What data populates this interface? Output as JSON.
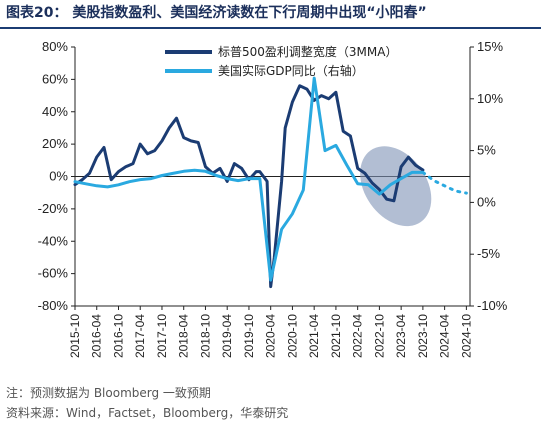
{
  "header": {
    "title": "图表20：  美股指数盈利、美国经济读数在下行周期中出现“小阳春”"
  },
  "footer": {
    "note": "注：预测数据为 Bloomberg 一致预期",
    "source": "资料来源：Wind，Factset，Bloomberg，华泰研究"
  },
  "colors": {
    "earnings_line": "#1b3c73",
    "gdp_line": "#2aa9e0",
    "ellipse": "#7f93b5"
  },
  "chart_data": {
    "type": "line",
    "title": "美股指数盈利、美国经济读数在下行周期中出现“小阳春”",
    "x_ticks": [
      "2015-10",
      "2016-04",
      "2016-10",
      "2017-04",
      "2017-10",
      "2018-04",
      "2018-10",
      "2019-04",
      "2019-10",
      "2020-04",
      "2020-10",
      "2021-04",
      "2021-10",
      "2022-04",
      "2022-10",
      "2023-04",
      "2023-10",
      "2024-04",
      "2024-10"
    ],
    "x_range": [
      "2015-10",
      "2024-11"
    ],
    "left_axis": {
      "ylim": [
        -80,
        80
      ],
      "ticks": [
        "80%",
        "60%",
        "40%",
        "20%",
        "0%",
        "-20%",
        "-40%",
        "-60%",
        "-80%"
      ]
    },
    "right_axis": {
      "ylim": [
        -10,
        15
      ],
      "ticks": [
        "15%",
        "10%",
        "5%",
        "0%",
        "-5%",
        "-10%"
      ]
    },
    "legend": {
      "placement": "top-center"
    },
    "series": [
      {
        "name": "标普500盈利调整宽度（3MMA）",
        "axis": "left",
        "color": "#1b3c73",
        "x": [
          "2015-10",
          "2015-12",
          "2016-02",
          "2016-04",
          "2016-06",
          "2016-08",
          "2016-10",
          "2016-12",
          "2017-02",
          "2017-04",
          "2017-06",
          "2017-08",
          "2017-10",
          "2017-12",
          "2018-02",
          "2018-04",
          "2018-06",
          "2018-08",
          "2018-10",
          "2018-12",
          "2019-02",
          "2019-04",
          "2019-06",
          "2019-08",
          "2019-10",
          "2019-12",
          "2020-01",
          "2020-03",
          "2020-04",
          "2020-05",
          "2020-07",
          "2020-08",
          "2020-10",
          "2020-12",
          "2021-02",
          "2021-04",
          "2021-06",
          "2021-08",
          "2021-10",
          "2021-12",
          "2022-02",
          "2022-04",
          "2022-06",
          "2022-08",
          "2022-10",
          "2022-12",
          "2023-02",
          "2023-04",
          "2023-06",
          "2023-08",
          "2023-10"
        ],
        "values": [
          -5,
          -2,
          2,
          12,
          18,
          -2,
          3,
          6,
          8,
          20,
          14,
          16,
          22,
          30,
          36,
          24,
          22,
          21,
          6,
          2,
          5,
          -3,
          8,
          5,
          -2,
          3,
          3,
          -3,
          -68,
          -50,
          -3,
          30,
          46,
          56,
          54,
          47,
          50,
          48,
          52,
          28,
          25,
          5,
          2,
          -4,
          -8,
          -14,
          -15,
          6,
          12,
          7,
          4
        ]
      },
      {
        "name": "美国实际GDP同比（右轴）",
        "axis": "right",
        "color": "#2aa9e0",
        "x": [
          "2015-10",
          "2016-01",
          "2016-04",
          "2016-07",
          "2016-10",
          "2017-01",
          "2017-04",
          "2017-07",
          "2017-10",
          "2018-01",
          "2018-04",
          "2018-07",
          "2018-10",
          "2019-01",
          "2019-04",
          "2019-07",
          "2019-10",
          "2020-01",
          "2020-04",
          "2020-07",
          "2020-10",
          "2021-01",
          "2021-04",
          "2021-07",
          "2021-10",
          "2022-01",
          "2022-04",
          "2022-07",
          "2022-10",
          "2023-01",
          "2023-04",
          "2023-07",
          "2023-10"
        ],
        "values": [
          2.0,
          1.8,
          1.6,
          1.5,
          1.7,
          2.0,
          2.2,
          2.3,
          2.6,
          2.8,
          3.0,
          3.1,
          3.0,
          2.6,
          2.3,
          2.1,
          2.3,
          2.3,
          -7.5,
          -2.6,
          -1.1,
          1.2,
          12.0,
          5.0,
          5.5,
          3.6,
          1.8,
          1.7,
          0.8,
          1.7,
          2.3,
          2.9,
          2.9
        ]
      },
      {
        "name": "",
        "forecast": true,
        "axis": "right",
        "color": "#2aa9e0",
        "x": [
          "2023-10",
          "2024-01",
          "2024-04",
          "2024-07",
          "2024-10"
        ],
        "values": [
          2.9,
          2.1,
          1.6,
          1.1,
          0.9
        ]
      }
    ],
    "annotations": [
      {
        "shape": "ellipse",
        "x_range": [
          "2022-06",
          "2023-11"
        ],
        "left_y_range": [
          -33,
          21
        ]
      }
    ]
  }
}
